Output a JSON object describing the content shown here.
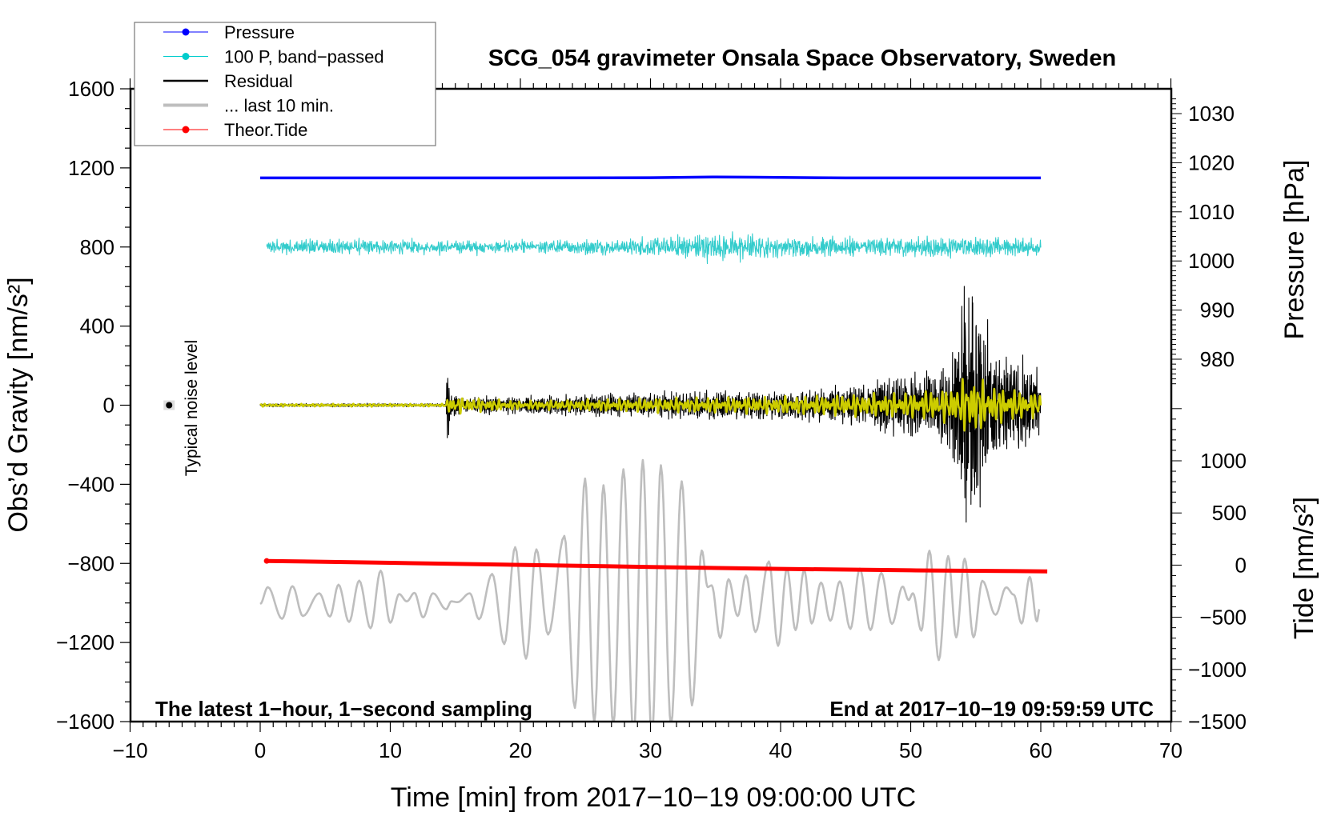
{
  "chart_data": {
    "type": "line",
    "title": "SCG_054 gravimeter Onsala Space Observatory, Sweden",
    "xlabel": "Time [min] from 2017−10−19 09:00:00 UTC",
    "ylabel": "Obs’d Gravity [nm/s²]",
    "ylabel_right_pressure": "Pressure [hPa]",
    "ylabel_right_tide": "Tide [nm/s²]",
    "note_left": "The latest 1−hour, 1−second sampling",
    "note_right": "End at 2017−10−19 09:59:59 UTC",
    "noise_label": "Typical noise level",
    "noise_marker": {
      "time": -7,
      "value": 0
    },
    "xlim": [
      -10,
      70
    ],
    "ylim": [
      -1600,
      1600
    ],
    "pressure_lim": [
      975,
      1033
    ],
    "tide_lim": [
      -1500,
      1000
    ],
    "x_ticks": [
      "−10",
      "0",
      "10",
      "20",
      "30",
      "40",
      "50",
      "60",
      "70"
    ],
    "x_tick_values": [
      -10,
      0,
      10,
      20,
      30,
      40,
      50,
      60,
      70
    ],
    "y_ticks": [
      "1600",
      "1200",
      "800",
      "400",
      "0",
      "−400",
      "−800",
      "−1200",
      "−1600"
    ],
    "y_tick_values": [
      1600,
      1200,
      800,
      400,
      0,
      -400,
      -800,
      -1200,
      -1600
    ],
    "pressure_ticks": [
      "1030",
      "1020",
      "1010",
      "1000",
      "990",
      "980"
    ],
    "pressure_tick_values": [
      1030,
      1020,
      1010,
      1000,
      990,
      980
    ],
    "tide_ticks": [
      "1000",
      "500",
      "0",
      "−500",
      "−1000",
      "−1500"
    ],
    "tide_tick_values": [
      1000,
      500,
      0,
      -500,
      -1000,
      -1500
    ],
    "legend": {
      "placement": "top-left",
      "entries": [
        {
          "label": "Pressure",
          "color": "#0000ff",
          "style": "line-dot"
        },
        {
          "label": "100 P, band−passed",
          "color": "#00cccc",
          "style": "line-dot"
        },
        {
          "label": "Residual",
          "color": "#000000",
          "style": "line"
        },
        {
          "label": "... last 10 min.",
          "color": "#bebebe",
          "style": "thick-line"
        },
        {
          "label": "Theor.Tide",
          "color": "#ff0000",
          "style": "line-dot"
        }
      ]
    },
    "series": [
      {
        "name": "Pressure",
        "axis": "pressure",
        "color": "#0000ff",
        "points": [
          [
            0,
            1016.9
          ],
          [
            10,
            1016.9
          ],
          [
            20,
            1016.9
          ],
          [
            30,
            1016.95
          ],
          [
            35,
            1017.1
          ],
          [
            38,
            1017.05
          ],
          [
            45,
            1016.9
          ],
          [
            60,
            1016.9
          ]
        ]
      },
      {
        "name": "100 P, band-passed",
        "axis": "gravity",
        "color": "#33cccc",
        "baseline": 800,
        "amplitude_envelope": [
          [
            0.5,
            35
          ],
          [
            5,
            40
          ],
          [
            14,
            35
          ],
          [
            20,
            35
          ],
          [
            28,
            40
          ],
          [
            31,
            55
          ],
          [
            34,
            70
          ],
          [
            36,
            65
          ],
          [
            40,
            55
          ],
          [
            45,
            50
          ],
          [
            50,
            55
          ],
          [
            55,
            50
          ],
          [
            60,
            45
          ]
        ]
      },
      {
        "name": "Residual",
        "axis": "gravity",
        "color": "#000000",
        "baseline": 0,
        "amplitude_envelope": [
          [
            0,
            8
          ],
          [
            14.2,
            8
          ],
          [
            14.4,
            190
          ],
          [
            14.7,
            70
          ],
          [
            15.5,
            30
          ],
          [
            17,
            45
          ],
          [
            20,
            40
          ],
          [
            25,
            50
          ],
          [
            30,
            60
          ],
          [
            35,
            65
          ],
          [
            40,
            70
          ],
          [
            45,
            90
          ],
          [
            47,
            110
          ],
          [
            50,
            150
          ],
          [
            52,
            170
          ],
          [
            53,
            220
          ],
          [
            53.5,
            330
          ],
          [
            54,
            520
          ],
          [
            54.8,
            730
          ],
          [
            55.5,
            520
          ],
          [
            56,
            300
          ],
          [
            57,
            220
          ],
          [
            58,
            230
          ],
          [
            59,
            200
          ],
          [
            60,
            150
          ]
        ]
      },
      {
        "name": "Residual filtered",
        "axis": "gravity",
        "color": "#cccc00",
        "baseline": 0,
        "amplitude_envelope": [
          [
            0,
            5
          ],
          [
            14.2,
            5
          ],
          [
            14.4,
            30
          ],
          [
            20,
            15
          ],
          [
            30,
            25
          ],
          [
            40,
            30
          ],
          [
            50,
            45
          ],
          [
            53,
            60
          ],
          [
            54.8,
            110
          ],
          [
            56,
            70
          ],
          [
            60,
            40
          ]
        ]
      },
      {
        "name": "... last 10 min.",
        "axis": "gravity",
        "color": "#bebebe",
        "extrema": [
          [
            0,
            -1005
          ],
          [
            0.59,
            -920
          ],
          [
            1.68,
            -1080
          ],
          [
            2.48,
            -915
          ],
          [
            3.28,
            -1066
          ],
          [
            4.54,
            -951
          ],
          [
            5.36,
            -1069
          ],
          [
            6.02,
            -908
          ],
          [
            6.83,
            -1096
          ],
          [
            7.61,
            -887
          ],
          [
            8.48,
            -1128
          ],
          [
            9.26,
            -837
          ],
          [
            10.0,
            -1100
          ],
          [
            10.68,
            -955
          ],
          [
            11.27,
            -992
          ],
          [
            11.86,
            -949
          ],
          [
            12.52,
            -1073
          ],
          [
            13.28,
            -951
          ],
          [
            14.29,
            -1032
          ],
          [
            14.69,
            -992
          ],
          [
            15.16,
            -996
          ],
          [
            16.11,
            -951
          ],
          [
            16.82,
            -1082
          ],
          [
            17.83,
            -853
          ],
          [
            18.76,
            -1208
          ],
          [
            19.6,
            -718
          ],
          [
            20.43,
            -1282
          ],
          [
            21.23,
            -729
          ],
          [
            22.13,
            -1160
          ],
          [
            23.38,
            -661
          ],
          [
            24.19,
            -1531
          ],
          [
            24.97,
            -371
          ],
          [
            25.68,
            -1605
          ],
          [
            26.39,
            -405
          ],
          [
            27.14,
            -1619
          ],
          [
            27.92,
            -324
          ],
          [
            28.7,
            -1680
          ],
          [
            29.41,
            -277
          ],
          [
            30.1,
            -1693
          ],
          [
            30.8,
            -304
          ],
          [
            31.58,
            -1619
          ],
          [
            32.4,
            -385
          ],
          [
            33.19,
            -1518
          ],
          [
            33.94,
            -735
          ],
          [
            34.4,
            -920
          ],
          [
            34.7,
            -911
          ],
          [
            35.36,
            -1177
          ],
          [
            36.0,
            -880
          ],
          [
            36.7,
            -1066
          ],
          [
            37.34,
            -861
          ],
          [
            38.07,
            -1147
          ],
          [
            39.1,
            -790
          ],
          [
            39.81,
            -1217
          ],
          [
            40.49,
            -826
          ],
          [
            41.15,
            -1137
          ],
          [
            41.81,
            -834
          ],
          [
            42.39,
            -1104
          ],
          [
            43.11,
            -897
          ],
          [
            43.83,
            -1090
          ],
          [
            44.55,
            -891
          ],
          [
            45.37,
            -1131
          ],
          [
            46.09,
            -826
          ],
          [
            46.91,
            -1137
          ],
          [
            47.74,
            -848
          ],
          [
            48.56,
            -1106
          ],
          [
            49.38,
            -917
          ],
          [
            49.84,
            -985
          ],
          [
            50.17,
            -951
          ],
          [
            50.82,
            -1140
          ],
          [
            51.44,
            -736
          ],
          [
            52.16,
            -1289
          ],
          [
            52.88,
            -763
          ],
          [
            53.5,
            -1174
          ],
          [
            54.15,
            -776
          ],
          [
            54.83,
            -1174
          ],
          [
            55.51,
            -888
          ],
          [
            56.52,
            -1060
          ],
          [
            57.34,
            -921
          ],
          [
            57.92,
            -958
          ],
          [
            58.53,
            -1104
          ],
          [
            59.15,
            -868
          ],
          [
            59.7,
            -1093
          ],
          [
            59.9,
            -1032
          ]
        ]
      },
      {
        "name": "Theor.Tide",
        "axis": "tide",
        "color": "#ff0000",
        "points": [
          [
            0.5,
            40
          ],
          [
            10,
            22
          ],
          [
            20,
            2
          ],
          [
            30,
            -18
          ],
          [
            40,
            -36
          ],
          [
            50,
            -50
          ],
          [
            60.5,
            -60
          ]
        ]
      }
    ]
  }
}
